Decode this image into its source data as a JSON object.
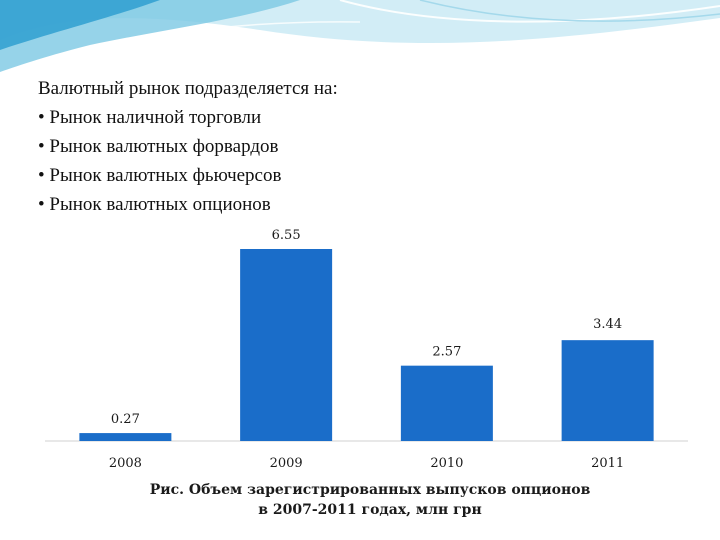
{
  "slide": {
    "intro": "Валютный рынок подразделяется на:",
    "bullet_char": "•",
    "items": [
      "Рынок наличной торговли",
      "Рынок валютных форвардов",
      "Рынок валютных фьючерсов",
      "Рынок валютных опционов"
    ]
  },
  "caption": {
    "line1": "Рис. Объем зарегистрированных выпусков опционов",
    "line2": "в 2007-2011 годах, млн грн"
  },
  "colors": {
    "bar": "#1a6dc9",
    "axis": "#d0d0d0",
    "deco_light": "#bfe6f2",
    "deco_mid": "#7cc8e4",
    "deco_dark": "#2f9fd0"
  },
  "chart_data": {
    "type": "bar",
    "categories": [
      "2008",
      "2009",
      "2010",
      "2011"
    ],
    "values": [
      0.27,
      6.55,
      2.57,
      3.44
    ],
    "value_labels": [
      "0.27",
      "6.55",
      "2.57",
      "3.44"
    ],
    "title": "",
    "xlabel": "",
    "ylabel": "",
    "ylim": [
      0,
      6.55
    ],
    "grid": false,
    "legend": "none"
  }
}
